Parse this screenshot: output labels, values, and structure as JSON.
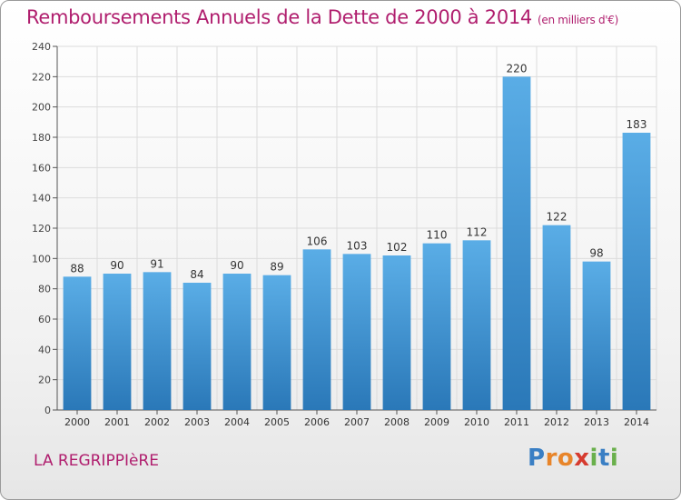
{
  "title": "Remboursements Annuels de la Dette de 2000 à 2014",
  "unit": "(en milliers d'€)",
  "town": "LA REGRIPPIèRE",
  "brand": {
    "letters": [
      "P",
      "r",
      "o",
      "x",
      "i",
      "t",
      "i"
    ],
    "colors": [
      "#3a7fc4",
      "#e8852a",
      "#e8852a",
      "#d63b2f",
      "#6ab04c",
      "#3a7fc4",
      "#6ab04c"
    ]
  },
  "colors": {
    "bar_top": "#5aade6",
    "bar_bottom": "#2a78b8",
    "title": "#b01e6e",
    "grid": "#dcdcdc"
  },
  "chart_data": {
    "type": "bar",
    "categories": [
      "2000",
      "2001",
      "2002",
      "2003",
      "2004",
      "2005",
      "2006",
      "2007",
      "2008",
      "2009",
      "2010",
      "2011",
      "2012",
      "2013",
      "2014"
    ],
    "values": [
      88,
      90,
      91,
      84,
      90,
      89,
      106,
      103,
      102,
      110,
      112,
      220,
      122,
      98,
      183
    ],
    "ylim": [
      0,
      240
    ],
    "yticks": [
      0,
      20,
      40,
      60,
      80,
      100,
      120,
      140,
      160,
      180,
      200,
      220,
      240
    ],
    "grid": true
  }
}
